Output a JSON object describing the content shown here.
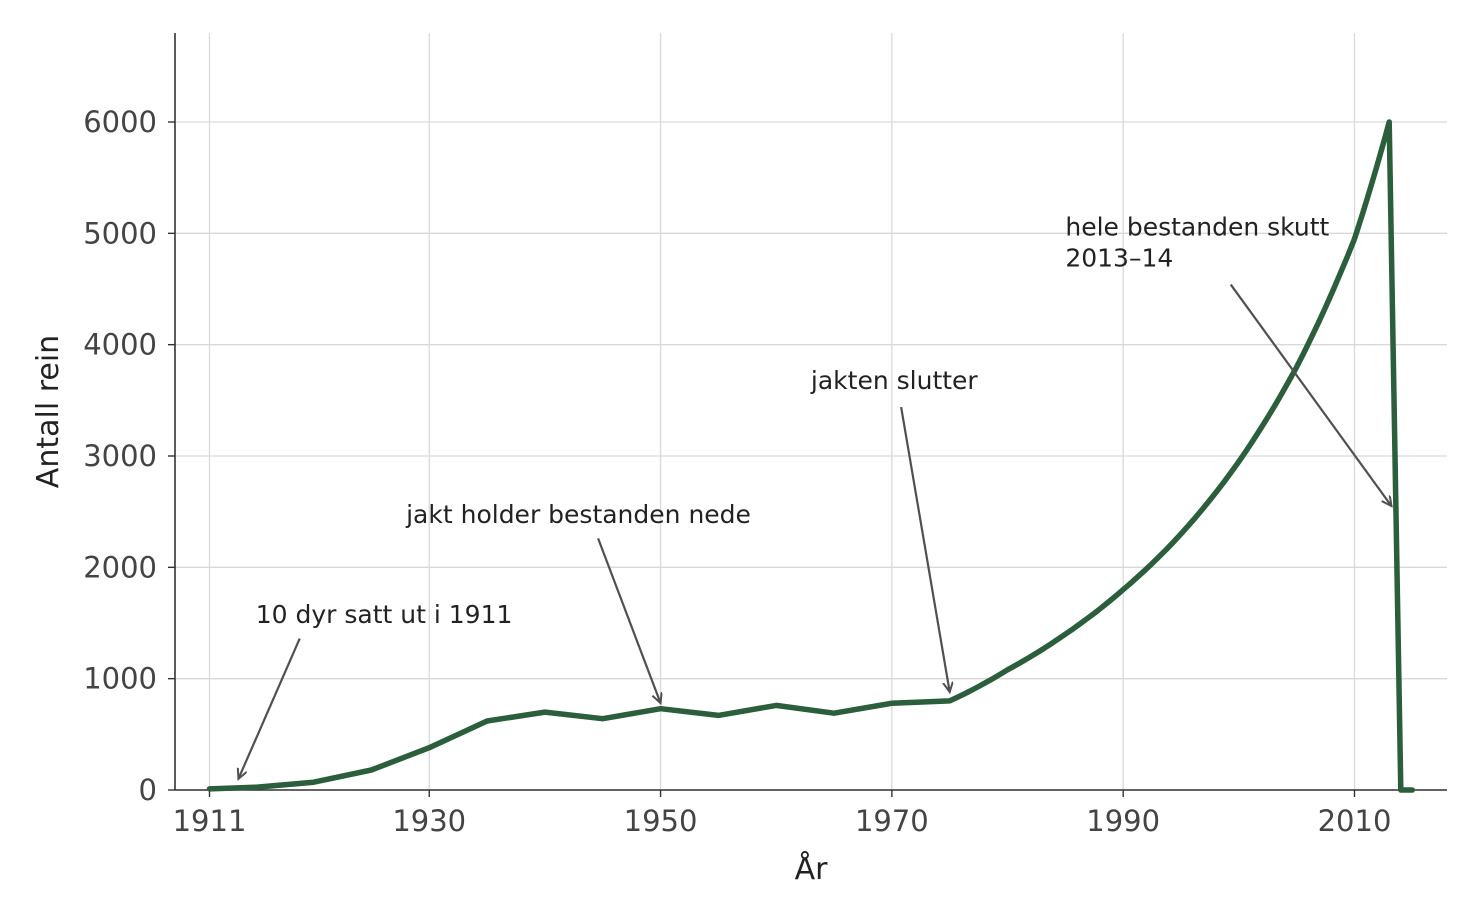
{
  "chart_data": {
    "type": "line",
    "title": "",
    "xlabel": "År",
    "ylabel": "Antall rein",
    "xlim": [
      1908,
      2018
    ],
    "ylim": [
      0,
      6800
    ],
    "grid": true,
    "xticks": [
      1911,
      1930,
      1950,
      1970,
      1990,
      2010
    ],
    "yticks": [
      0,
      1000,
      2000,
      3000,
      4000,
      5000,
      6000
    ],
    "series": [
      {
        "color": "#2b5e3b",
        "x": [
          1911,
          1915,
          1920,
          1925,
          1930,
          1935,
          1940,
          1945,
          1950,
          1955,
          1960,
          1965,
          1970,
          1975,
          1980,
          1985,
          1990,
          1995,
          2000,
          2005,
          2010,
          2013,
          2014,
          2015
        ],
        "y": [
          10,
          25,
          70,
          180,
          380,
          620,
          700,
          640,
          730,
          670,
          760,
          690,
          780,
          800,
          1080,
          1400,
          1800,
          2300,
          2950,
          3800,
          4950,
          6000,
          0,
          0
        ]
      }
    ],
    "annotations": [
      {
        "text": "10 dyr satt ut i 1911",
        "text_x": 1915,
        "text_y": 1500,
        "target_x": 1913.5,
        "target_y": 100
      },
      {
        "text": "jakt holder bestanden nede",
        "text_x": 1928,
        "text_y": 2400,
        "target_x": 1950,
        "target_y": 780
      },
      {
        "text": "jakten slutter",
        "text_x": 1963,
        "text_y": 3600,
        "target_x": 1975,
        "target_y": 880
      },
      {
        "text": "hele bestanden skutt\n2013–14",
        "text_x": 1985,
        "text_y": 4700,
        "target_x": 2013.2,
        "target_y": 2550
      }
    ]
  }
}
